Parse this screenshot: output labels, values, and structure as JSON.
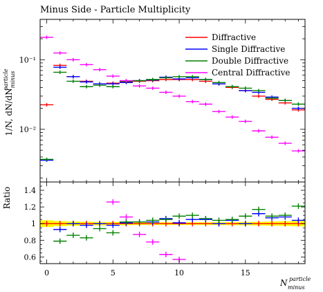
{
  "chart_data": {
    "type": "scatter",
    "title": "Minus Side - Particle Multiplicity",
    "xlabel": "N",
    "xlabel_sup": "particle",
    "xlabel_sub": "minus",
    "ylabel_main": "1/N, dN/dN",
    "ylabel_sup": "particle",
    "ylabel_sub": "minus",
    "ylabel_ratio": "Ratio",
    "xlim": [
      -0.5,
      19.5
    ],
    "x_ticks": [
      0,
      5,
      10,
      15
    ],
    "main_yscale": "log",
    "main_ylim": [
      0.00175,
      0.38
    ],
    "main_y_ticks": [
      {
        "value": 0.1,
        "label": "10⁻¹"
      },
      {
        "value": 0.01,
        "label": "10⁻²"
      }
    ],
    "ratio_ylim": [
      0.52,
      1.5
    ],
    "ratio_y_ticks": [
      0.6,
      0.8,
      1,
      1.2,
      1.4
    ],
    "reference_band": {
      "color": "#ffff00",
      "low": [
        0.96,
        0.97,
        0.975,
        0.978,
        0.98,
        0.98,
        0.982,
        0.984,
        0.984,
        0.984,
        0.984,
        0.984,
        0.984,
        0.983,
        0.982,
        0.98,
        0.978,
        0.975,
        0.972,
        0.968
      ],
      "high": [
        1.04,
        1.03,
        1.025,
        1.022,
        1.02,
        1.02,
        1.018,
        1.016,
        1.016,
        1.016,
        1.016,
        1.016,
        1.016,
        1.017,
        1.018,
        1.02,
        1.022,
        1.025,
        1.028,
        1.032
      ]
    },
    "legend_position": "top-right",
    "series": [
      {
        "name": "Diffractive",
        "color": "#ff0000",
        "values": [
          0.0225,
          0.083,
          0.057,
          0.049,
          0.045,
          0.046,
          0.048,
          0.049,
          0.05,
          0.052,
          0.052,
          0.052,
          0.049,
          0.045,
          0.04,
          0.036,
          0.03,
          0.027,
          0.024,
          0.019
        ],
        "ratio": [
          1,
          1,
          1,
          1,
          1,
          1,
          1,
          1,
          1,
          1,
          1,
          1,
          1,
          1,
          1,
          1,
          1,
          1,
          1,
          1
        ]
      },
      {
        "name": "Single Diffractive",
        "color": "#0000ff",
        "values": [
          0.0036,
          0.078,
          0.057,
          0.048,
          0.045,
          0.045,
          0.047,
          0.05,
          0.051,
          0.056,
          0.053,
          0.055,
          0.052,
          0.045,
          0.041,
          0.036,
          0.034,
          0.029,
          0.026,
          0.02
        ],
        "ratio": [
          null,
          0.93,
          1.0,
          0.98,
          1.0,
          0.98,
          1.01,
          1.02,
          1.02,
          1.06,
          1.01,
          1.05,
          1.05,
          1.0,
          1.04,
          1.0,
          1.12,
          1.07,
          1.08,
          1.04
        ]
      },
      {
        "name": "Double Diffractive",
        "color": "#008000",
        "values": [
          0.0037,
          0.066,
          0.049,
          0.041,
          0.043,
          0.041,
          0.049,
          0.05,
          0.052,
          0.055,
          0.057,
          0.057,
          0.052,
          0.047,
          0.041,
          0.039,
          0.036,
          0.028,
          0.026,
          0.023
        ],
        "ratio": [
          null,
          0.79,
          0.86,
          0.83,
          0.94,
          0.89,
          1.02,
          1.02,
          1.04,
          1.05,
          1.09,
          1.1,
          1.06,
          1.04,
          1.05,
          1.09,
          1.17,
          1.09,
          1.1,
          1.21
        ]
      },
      {
        "name": "Central Diffractive",
        "color": "#ff00ff",
        "values": [
          0.21,
          0.125,
          0.1,
          0.085,
          0.072,
          0.058,
          0.05,
          0.042,
          0.039,
          0.034,
          0.03,
          0.025,
          0.023,
          0.018,
          0.015,
          0.013,
          0.0095,
          0.0077,
          0.0063,
          0.0049
        ],
        "ratio": [
          null,
          null,
          null,
          null,
          null,
          1.26,
          1.08,
          0.87,
          0.78,
          0.63,
          0.57,
          null,
          null,
          null,
          null,
          null,
          null,
          null,
          null,
          null
        ]
      }
    ]
  }
}
